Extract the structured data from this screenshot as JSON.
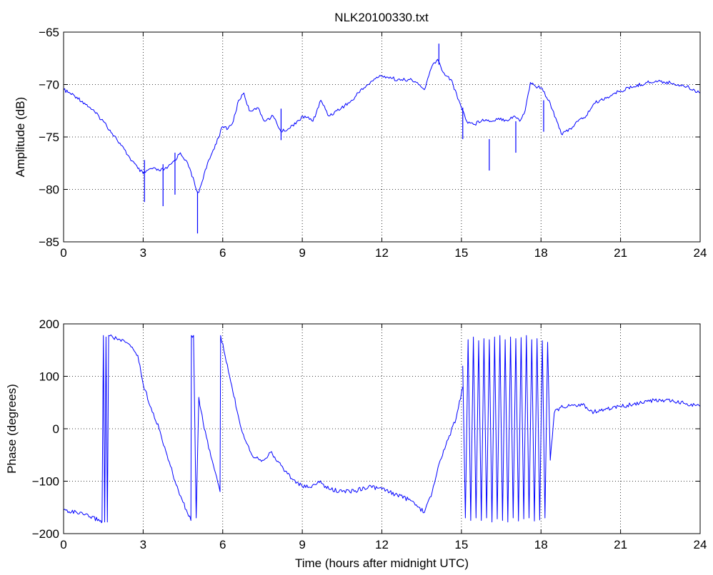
{
  "figure": {
    "title": "NLK20100330.txt"
  },
  "chart_data": [
    {
      "type": "line",
      "name": "amplitude-panel",
      "title": "NLK20100330.txt",
      "xlabel": "",
      "ylabel": "Amplitude (dB)",
      "xlim": [
        0,
        24
      ],
      "ylim": [
        -85,
        -65
      ],
      "xticks": [
        0,
        3,
        6,
        9,
        12,
        15,
        18,
        21,
        24
      ],
      "xtick_labels": [
        "0",
        "3",
        "6",
        "9",
        "12",
        "15",
        "18",
        "21",
        "24"
      ],
      "yticks": [
        -85,
        -80,
        -75,
        -70,
        -65
      ],
      "ytick_labels": [
        "−85",
        "−80",
        "−75",
        "−70",
        "−65"
      ],
      "grid": true,
      "line_color": "#0000ff",
      "series": [
        {
          "x": [
            0,
            0.5,
            1,
            1.5,
            2,
            2.5,
            2.8,
            3,
            3.3,
            3.6,
            3.9,
            4.2,
            4.4,
            4.6,
            4.8,
            5,
            5.1,
            5.3,
            5.6,
            6,
            6.2,
            6.4,
            6.6,
            6.8,
            7,
            7.3,
            7.6,
            7.9,
            8.2,
            8.5,
            8.8,
            9.1,
            9.4,
            9.7,
            10,
            10.3,
            10.6,
            10.9,
            11.2,
            11.5,
            11.8,
            12.1,
            12.4,
            12.7,
            13,
            13.3,
            13.6,
            13.9,
            14.1,
            14.3,
            14.6,
            14.9,
            15.2,
            15.5,
            15.8,
            16.1,
            16.4,
            16.7,
            17,
            17.2,
            17.4,
            17.6,
            17.8,
            18,
            18.3,
            18.6,
            18.8,
            19.1,
            19.4,
            19.7,
            20,
            20.5,
            21,
            21.5,
            22,
            22.5,
            23,
            23.5,
            24
          ],
          "y": [
            -70.5,
            -71.2,
            -72.2,
            -73.5,
            -75.2,
            -77,
            -78,
            -78.5,
            -78,
            -78.2,
            -78,
            -77.2,
            -76.5,
            -77.2,
            -78.3,
            -80,
            -80.3,
            -78.5,
            -76.5,
            -74,
            -74.2,
            -73.5,
            -71.5,
            -70.8,
            -72.5,
            -72.2,
            -73.5,
            -73,
            -74.5,
            -74.2,
            -73.5,
            -73,
            -73.5,
            -71.5,
            -73,
            -72.5,
            -72,
            -71.5,
            -70.5,
            -70,
            -69.3,
            -69.2,
            -69.4,
            -69.6,
            -69.5,
            -69.8,
            -70.5,
            -68.2,
            -67.6,
            -68.8,
            -69.5,
            -71.5,
            -73.5,
            -73.8,
            -73.3,
            -73.5,
            -73.2,
            -73.4,
            -73,
            -73.5,
            -72.5,
            -69.8,
            -70.2,
            -70.3,
            -71.5,
            -73.5,
            -74.8,
            -74.2,
            -73.5,
            -73,
            -71.8,
            -71.2,
            -70.6,
            -70.2,
            -69.8,
            -69.7,
            -69.9,
            -70.2,
            -70.8
          ]
        }
      ],
      "spikes": [
        {
          "x": 3.05,
          "y": -81.2
        },
        {
          "x": 3.75,
          "y": -81.6
        },
        {
          "x": 4.2,
          "y": -80.5
        },
        {
          "x": 5.05,
          "y": -84.2
        },
        {
          "x": 8.2,
          "y": -75.3
        },
        {
          "x": 15.05,
          "y": -75.2
        },
        {
          "x": 16.05,
          "y": -78.2
        },
        {
          "x": 17.05,
          "y": -76.5
        },
        {
          "x": 18.1,
          "y": -74.5
        },
        {
          "x": 14.15,
          "y": -66.1
        }
      ]
    },
    {
      "type": "line",
      "name": "phase-panel",
      "title": "",
      "xlabel": "Time (hours after midnight UTC)",
      "ylabel": "Phase (degrees)",
      "xlim": [
        0,
        24
      ],
      "ylim": [
        -200,
        200
      ],
      "xticks": [
        0,
        3,
        6,
        9,
        12,
        15,
        18,
        21,
        24
      ],
      "xtick_labels": [
        "0",
        "3",
        "6",
        "9",
        "12",
        "15",
        "18",
        "21",
        "24"
      ],
      "yticks": [
        -200,
        -100,
        0,
        100,
        200
      ],
      "ytick_labels": [
        "−200",
        "−100",
        "0",
        "100",
        "200"
      ],
      "grid": true,
      "line_color": "#0000ff",
      "series": [
        {
          "x": [
            0,
            0.5,
            1,
            1.4,
            1.45,
            1.5,
            1.55,
            1.6,
            1.65,
            1.7,
            2,
            2.5,
            2.8,
            3,
            3.3,
            3.6,
            3.9,
            4.2,
            4.5,
            4.8,
            4.82,
            4.9,
            5,
            5.1,
            5.3,
            5.6,
            5.9,
            5.92,
            6.3,
            6.7,
            7.1,
            7.5,
            7.8,
            8.2,
            8.6,
            9,
            9.3,
            9.6,
            10,
            10.5,
            11,
            11.5,
            12,
            12.5,
            13,
            13.3,
            13.6,
            13.9,
            14.2,
            14.5,
            14.8,
            15.05
          ],
          "y": [
            -155,
            -160,
            -168,
            -175,
            -178,
            178,
            -178,
            175,
            -178,
            178,
            172,
            160,
            140,
            85,
            40,
            0,
            -50,
            -100,
            -140,
            -175,
            178,
            178,
            -170,
            60,
            0,
            -60,
            -120,
            178,
            90,
            0,
            -50,
            -60,
            -45,
            -70,
            -95,
            -110,
            -112,
            -100,
            -115,
            -120,
            -118,
            -110,
            -115,
            -125,
            -135,
            -145,
            -160,
            -120,
            -60,
            -20,
            20,
            80
          ]
        },
        {
          "x": [
            15.05,
            15.15,
            15.25,
            15.35,
            15.45,
            15.55,
            15.65,
            15.75,
            15.85,
            15.95,
            16.05,
            16.15,
            16.25,
            16.35,
            16.45,
            16.55,
            16.65,
            16.75,
            16.85,
            16.95,
            17.05,
            17.15,
            17.25,
            17.35,
            17.45,
            17.55,
            17.65,
            17.75,
            17.85,
            17.95,
            18.05,
            18.15,
            18.25,
            18.35,
            18.5,
            18.7,
            19,
            19.3,
            19.6,
            19.8,
            20,
            20.5,
            21,
            21.5,
            22,
            22.5,
            23,
            23.5,
            24
          ],
          "y": [
            120,
            -170,
            170,
            -175,
            175,
            -170,
            168,
            -175,
            172,
            -170,
            170,
            -178,
            175,
            -172,
            178,
            -175,
            170,
            -178,
            175,
            -170,
            172,
            -176,
            174,
            -172,
            178,
            -170,
            170,
            -176,
            172,
            -174,
            168,
            -170,
            165,
            -60,
            30,
            40,
            42,
            45,
            48,
            35,
            32,
            38,
            42,
            47,
            52,
            55,
            52,
            48,
            43
          ]
        }
      ]
    }
  ]
}
